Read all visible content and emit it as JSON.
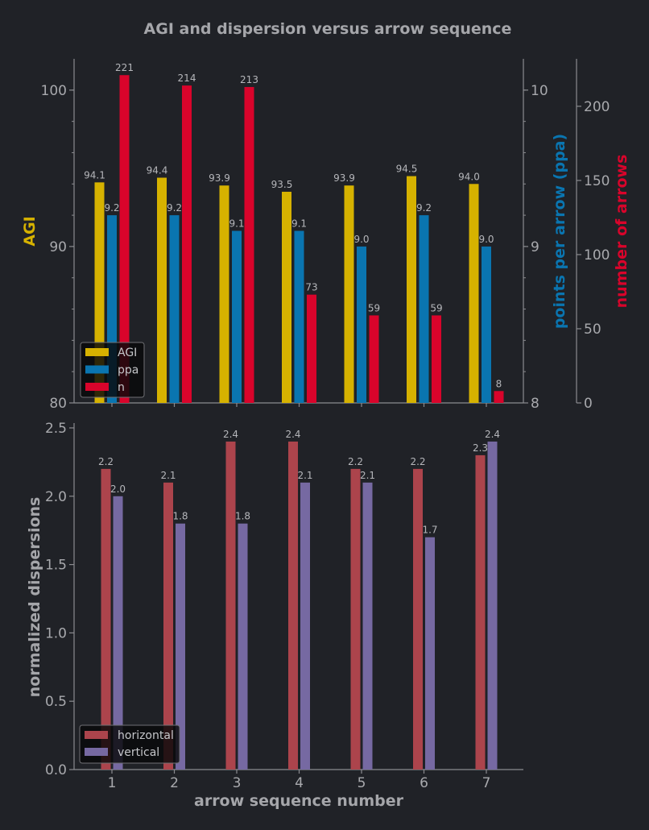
{
  "title": "AGI and dispersion versus arrow sequence",
  "colors": {
    "background": "#202227",
    "axis": "#8a8b8f",
    "AGI": "#d6b200",
    "ppa": "#0a75b0",
    "n": "#d9042b",
    "horizontal": "#ac444c",
    "vertical": "#7669a2"
  },
  "chart_data": [
    {
      "type": "bar",
      "title": "AGI and dispersion versus arrow sequence",
      "categories": [
        "1",
        "2",
        "3",
        "4",
        "5",
        "6",
        "7"
      ],
      "series": [
        {
          "name": "AGI",
          "axis": "left",
          "values": [
            94.1,
            94.4,
            93.9,
            93.5,
            93.9,
            94.5,
            94.0
          ],
          "labels": [
            "94.1",
            "94.4",
            "93.9",
            "93.5",
            "93.9",
            "94.5",
            "94.0"
          ]
        },
        {
          "name": "ppa",
          "axis": "right1",
          "values": [
            9.2,
            9.2,
            9.1,
            9.1,
            9.0,
            9.2,
            9.0
          ],
          "labels": [
            "9.2",
            "9.2",
            "9.1",
            "9.1",
            "9.0",
            "9.2",
            "9.0"
          ]
        },
        {
          "name": "n",
          "axis": "right2",
          "values": [
            221,
            214,
            213,
            73,
            59,
            59,
            8
          ],
          "labels": [
            "221",
            "214",
            "213",
            "73",
            "59",
            "59",
            "8"
          ]
        }
      ],
      "axes": {
        "left": {
          "label": "AGI",
          "ylim": [
            80,
            102
          ],
          "ticks": [
            "80",
            "90",
            "100"
          ],
          "tick_values": [
            80,
            90,
            100
          ]
        },
        "right1": {
          "label": "points per arrow (ppa)",
          "ylim": [
            8,
            10.2
          ],
          "ticks": [
            "8",
            "9",
            "10"
          ],
          "tick_values": [
            8,
            9,
            10
          ]
        },
        "right2": {
          "label": "number of arrows",
          "ylim": [
            0,
            232
          ],
          "ticks": [
            "0",
            "50",
            "100",
            "150",
            "200"
          ],
          "tick_values": [
            0,
            50,
            100,
            150,
            200
          ]
        }
      },
      "legend": {
        "position": "bottom-left",
        "entries": [
          "AGI",
          "ppa",
          "n"
        ]
      },
      "grid": false
    },
    {
      "type": "bar",
      "categories": [
        "1",
        "2",
        "3",
        "4",
        "5",
        "6",
        "7"
      ],
      "series": [
        {
          "name": "horizontal",
          "values": [
            2.2,
            2.1,
            2.4,
            2.4,
            2.2,
            2.2,
            2.3
          ],
          "labels": [
            "2.2",
            "2.1",
            "2.4",
            "2.4",
            "2.2",
            "2.2",
            "2.3"
          ]
        },
        {
          "name": "vertical",
          "values": [
            2.0,
            1.8,
            1.8,
            2.1,
            2.1,
            1.7,
            2.4
          ],
          "labels": [
            "2.0",
            "1.8",
            "1.8",
            "2.1",
            "2.1",
            "1.7",
            "2.4"
          ]
        }
      ],
      "xlabel": "arrow sequence number",
      "ylabel": "normalized dispersions",
      "ylim": [
        0,
        2.5
      ],
      "yticks": [
        "0.0",
        "0.5",
        "1.0",
        "1.5",
        "2.0",
        "2.5"
      ],
      "ytick_values": [
        0,
        0.5,
        1.0,
        1.5,
        2.0,
        2.5
      ],
      "legend": {
        "position": "bottom-left",
        "entries": [
          "horizontal",
          "vertical"
        ]
      },
      "grid": false
    }
  ]
}
